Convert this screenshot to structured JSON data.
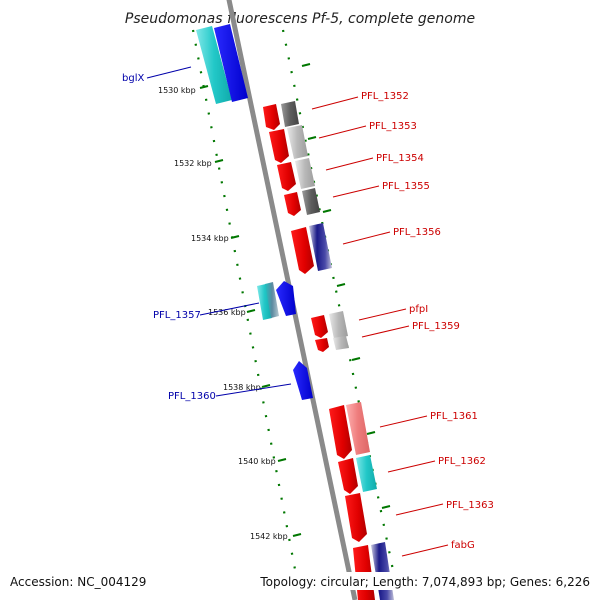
{
  "title": "Pseudomonas fluorescens Pf-5, complete genome",
  "footer": {
    "accession": "Accession: NC_004129",
    "stats": "Topology: circular; Length: 7,074,893 bp; Genes: 6,226"
  },
  "ticks": [
    "1530 kbp",
    "1532 kbp",
    "1534 kbp",
    "1536 kbp",
    "1538 kbp",
    "1540 kbp",
    "1542 kbp"
  ],
  "gene_labels": {
    "left": [
      "bglX",
      "PFL_1357",
      "PFL_1360"
    ],
    "right": [
      "PFL_1352",
      "PFL_1353",
      "PFL_1354",
      "PFL_1355",
      "PFL_1356",
      "pfpI",
      "PFL_1359",
      "PFL_1361",
      "PFL_1362",
      "PFL_1363",
      "fabG"
    ]
  },
  "colors": {
    "forward_strand": "#ff0000",
    "reverse_strand": "#0000ff",
    "left_label": "#0000aa",
    "right_label": "#cc0000",
    "tick": "#007700",
    "backbone": "#888888"
  }
}
